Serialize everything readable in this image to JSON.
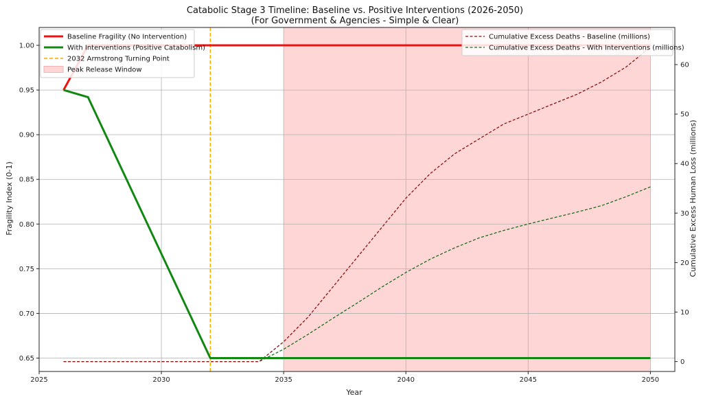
{
  "chart_data": {
    "type": "line",
    "title": "Catabolic Stage 3 Timeline: Baseline vs. Positive Interventions (2026-2050)",
    "subtitle": "(For Government & Agencies - Simple & Clear)",
    "xlabel": "Year",
    "ylabel": "Fragility Index (0-1)",
    "ylabel_right": "Cumulative Excess Human Loss (millions)",
    "xlim": [
      2025,
      2051
    ],
    "ylim": [
      0.635,
      1.02
    ],
    "ylim_right": [
      -2.0,
      67.5
    ],
    "xticks": [
      2025,
      2030,
      2035,
      2040,
      2045,
      2050
    ],
    "yticks": [
      0.65,
      0.7,
      0.75,
      0.8,
      0.85,
      0.9,
      0.95,
      1.0
    ],
    "yticks_right": [
      0,
      10,
      20,
      30,
      40,
      50,
      60
    ],
    "grid": true,
    "shaded_region": {
      "name": "Peak Release Window",
      "x": [
        2035,
        2050
      ],
      "color": "#ffd6d6"
    },
    "vline": {
      "name": "2032 Armstrong Turning Point",
      "x": 2032,
      "color": "#ffa500"
    },
    "series": [
      {
        "name": "Baseline Fragility (No Intervention)",
        "axis": "left",
        "style": "solid",
        "color": "#ee1111",
        "x": [
          2026,
          2027,
          2028,
          2029,
          2030,
          2031,
          2032,
          2033,
          2034,
          2035,
          2036,
          2037,
          2038,
          2039,
          2040,
          2041,
          2042,
          2043,
          2044,
          2045,
          2046,
          2047,
          2048,
          2049,
          2050
        ],
        "y": [
          0.95,
          1.0,
          1.0,
          1.0,
          1.0,
          1.0,
          1.0,
          1.0,
          1.0,
          1.0,
          1.0,
          1.0,
          1.0,
          1.0,
          1.0,
          1.0,
          1.0,
          1.0,
          1.0,
          1.0,
          1.0,
          1.0,
          1.0,
          1.0,
          1.0
        ]
      },
      {
        "name": "With Interventions (Positive Catabolism)",
        "axis": "left",
        "style": "solid",
        "color": "#118811",
        "x": [
          2026,
          2027,
          2032,
          2033,
          2034,
          2035,
          2040,
          2045,
          2050
        ],
        "y": [
          0.95,
          0.942,
          0.65,
          0.65,
          0.65,
          0.65,
          0.65,
          0.65,
          0.65
        ]
      },
      {
        "name": "Cumulative Excess Deaths - Baseline (millions)",
        "axis": "right",
        "style": "dashed",
        "color": "#8b1010",
        "x": [
          2026,
          2027,
          2028,
          2029,
          2030,
          2031,
          2032,
          2033,
          2034,
          2035,
          2036,
          2037,
          2038,
          2039,
          2040,
          2041,
          2042,
          2043,
          2044,
          2045,
          2046,
          2047,
          2048,
          2049,
          2050
        ],
        "y": [
          0,
          0,
          0,
          0,
          0,
          0,
          0,
          0,
          0,
          4,
          9,
          15,
          21,
          27,
          33,
          38,
          42,
          45,
          48,
          50,
          52,
          54,
          56.5,
          59.5,
          63.5
        ]
      },
      {
        "name": "Cumulative Excess Deaths - With Interventions (millions)",
        "axis": "right",
        "style": "dashed",
        "color": "#1a6b1a",
        "x": [
          2026,
          2027,
          2028,
          2029,
          2030,
          2031,
          2032,
          2033,
          2034,
          2035,
          2036,
          2037,
          2038,
          2039,
          2040,
          2041,
          2042,
          2043,
          2044,
          2045,
          2046,
          2047,
          2048,
          2049,
          2050
        ],
        "y": [
          0,
          0,
          0,
          0,
          0,
          0,
          0,
          0,
          0,
          2.5,
          5.5,
          8.7,
          11.8,
          15,
          18,
          20.7,
          23,
          25,
          26.5,
          27.8,
          29,
          30.2,
          31.5,
          33.3,
          35.3
        ]
      }
    ],
    "legend_left": [
      "Baseline Fragility (No Intervention)",
      "With Interventions (Positive Catabolism)",
      "2032 Armstrong Turning Point",
      "Peak Release Window"
    ],
    "legend_right": [
      "Cumulative Excess Deaths - Baseline (millions)",
      "Cumulative Excess Deaths - With Interventions (millions)"
    ],
    "legend_left_placement": "upper-left",
    "legend_right_placement": "upper-right"
  }
}
